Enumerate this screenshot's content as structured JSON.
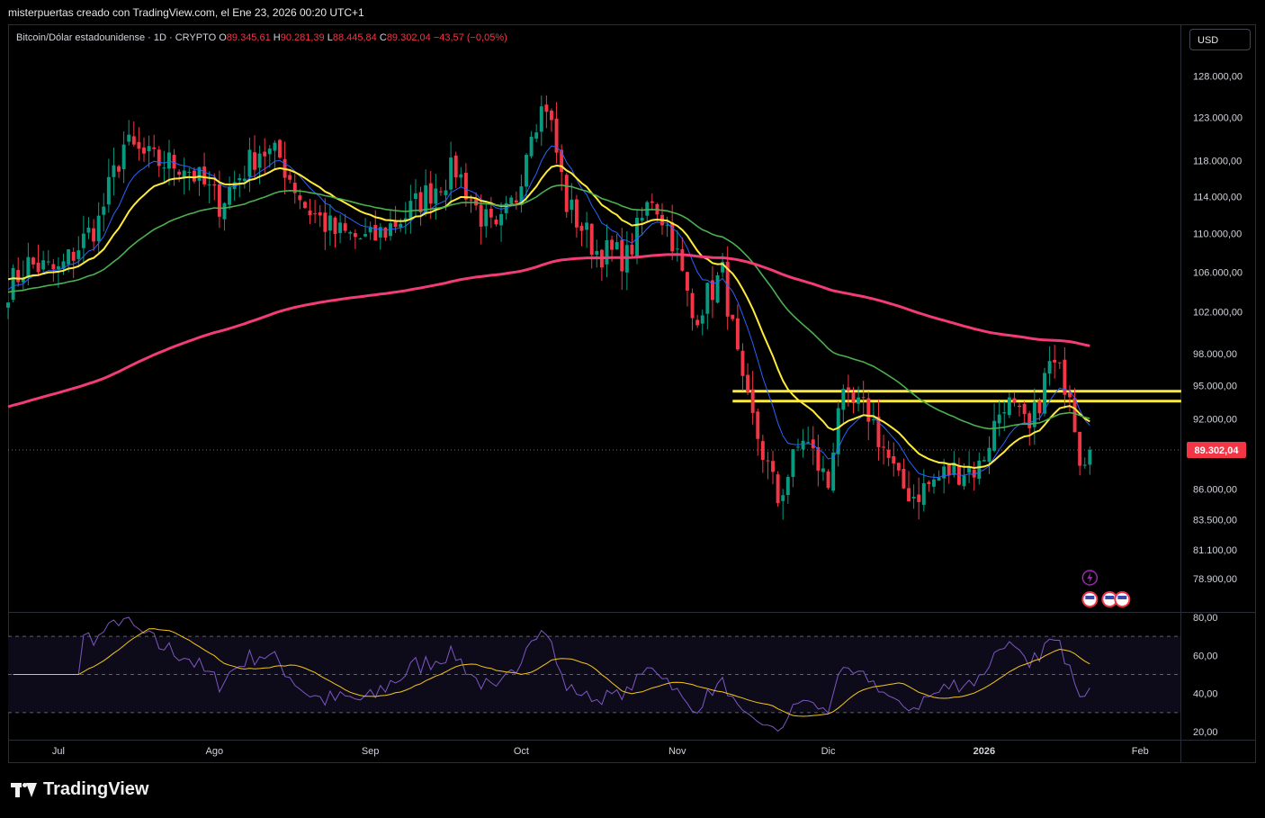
{
  "header": {
    "credit": "misterpuertas creado con TradingView.com, el Ene 23, 2026 00:20 UTC+1"
  },
  "legend": {
    "symbol": "Bitcoin/Dólar estadounidense · 1D · CRYPTO",
    "o_label": "O",
    "o_value": "89.345,61",
    "h_label": "H",
    "h_value": "90.281,39",
    "l_label": "L",
    "l_value": "88.445,84",
    "c_label": "C",
    "c_value": "89.302,04",
    "change": "−43,57 (−0,05%)"
  },
  "currency_button": "USD",
  "price_badge": "89.302,04",
  "footer": {
    "brand": "TradingView"
  },
  "colors": {
    "up": "#089981",
    "down": "#f23645",
    "ema_fast": "#2962ff",
    "ema_yellow": "#ffeb3b",
    "ema_green": "#4caf50",
    "ema_red": "#f23c75",
    "levels": "#ffeb3b",
    "rsi": "#7e57c2",
    "rsi_ma": "#f5c518"
  },
  "chart_data": [
    {
      "type": "candlestick",
      "title": "Bitcoin/Dólar estadounidense · 1D · CRYPTO",
      "x_tick_labels": [
        "Jul",
        "Ago",
        "Sep",
        "Oct",
        "Nov",
        "Dic",
        "2026",
        "Feb"
      ],
      "x_range": [
        "2025-06-21",
        "2026-02-09"
      ],
      "y_scale": "log",
      "y_tick_labels": [
        "128.000,00",
        "123.000,00",
        "118.000,00",
        "114.000,00",
        "110.000,00",
        "106.000,00",
        "102.000,00",
        "98.000,00",
        "95.000,00",
        "92.000,00",
        "86.000,00",
        "83.500,00",
        "81.100,00",
        "78.900,00"
      ],
      "y_ticks": [
        128000,
        123000,
        118000,
        114000,
        110000,
        106000,
        102000,
        98000,
        95000,
        92000,
        86000,
        83500,
        81100,
        78900
      ],
      "last_close": 89302.04,
      "horizontal_levels": [
        {
          "price": 94500,
          "x_start": "2025-11-12",
          "x_end": "2026-01-23"
        },
        {
          "price": 93600,
          "x_start": "2025-11-12",
          "x_end": "2026-01-23"
        }
      ],
      "close_anchors": [
        {
          "date": "2025-06-21",
          "close": 104500
        },
        {
          "date": "2025-06-25",
          "close": 106800
        },
        {
          "date": "2025-07-01",
          "close": 106000
        },
        {
          "date": "2025-07-09",
          "close": 111300
        },
        {
          "date": "2025-07-14",
          "close": 119800
        },
        {
          "date": "2025-07-20",
          "close": 117900
        },
        {
          "date": "2025-07-26",
          "close": 117600
        },
        {
          "date": "2025-08-02",
          "close": 113300
        },
        {
          "date": "2025-08-10",
          "close": 119300
        },
        {
          "date": "2025-08-14",
          "close": 118300
        },
        {
          "date": "2025-08-19",
          "close": 113000
        },
        {
          "date": "2025-08-25",
          "close": 110100
        },
        {
          "date": "2025-09-01",
          "close": 109200
        },
        {
          "date": "2025-09-08",
          "close": 112000
        },
        {
          "date": "2025-09-14",
          "close": 115200
        },
        {
          "date": "2025-09-18",
          "close": 117100
        },
        {
          "date": "2025-09-22",
          "close": 112700
        },
        {
          "date": "2025-09-26",
          "close": 109700
        },
        {
          "date": "2025-09-30",
          "close": 114100
        },
        {
          "date": "2025-10-03",
          "close": 122300
        },
        {
          "date": "2025-10-06",
          "close": 124700
        },
        {
          "date": "2025-10-10",
          "close": 113200
        },
        {
          "date": "2025-10-16",
          "close": 108200
        },
        {
          "date": "2025-10-22",
          "close": 107500
        },
        {
          "date": "2025-10-27",
          "close": 114100
        },
        {
          "date": "2025-10-31",
          "close": 109600
        },
        {
          "date": "2025-11-04",
          "close": 101400
        },
        {
          "date": "2025-11-10",
          "close": 105800
        },
        {
          "date": "2025-11-14",
          "close": 94500
        },
        {
          "date": "2025-11-21",
          "close": 85100
        },
        {
          "date": "2025-11-26",
          "close": 90500
        },
        {
          "date": "2025-12-01",
          "close": 86300
        },
        {
          "date": "2025-12-03",
          "close": 93500
        },
        {
          "date": "2025-12-09",
          "close": 92600
        },
        {
          "date": "2025-12-15",
          "close": 86400
        },
        {
          "date": "2025-12-18",
          "close": 85500
        },
        {
          "date": "2025-12-25",
          "close": 87500
        },
        {
          "date": "2025-12-31",
          "close": 87800
        },
        {
          "date": "2026-01-05",
          "close": 93800
        },
        {
          "date": "2026-01-10",
          "close": 90700
        },
        {
          "date": "2026-01-14",
          "close": 97000
        },
        {
          "date": "2026-01-18",
          "close": 95000
        },
        {
          "date": "2026-01-20",
          "close": 89000
        },
        {
          "date": "2026-01-22",
          "close": 89302
        }
      ],
      "series": [
        {
          "name": "",
          "kind": "ema",
          "period": 10,
          "color": "#2962ff"
        },
        {
          "name": "",
          "kind": "ema",
          "period": 20,
          "color": "#ffeb3b"
        },
        {
          "name": "",
          "kind": "ema",
          "period": 50,
          "color": "#4caf50"
        },
        {
          "name": "",
          "kind": "ema",
          "period": 200,
          "color": "#f23c75"
        }
      ]
    },
    {
      "type": "line",
      "title": "",
      "y_tick_labels": [
        "80,00",
        "60,00",
        "40,00",
        "20,00"
      ],
      "y_ticks": [
        80,
        60,
        40,
        20
      ],
      "ylim": [
        20,
        80
      ],
      "bands": [
        70,
        50,
        30
      ],
      "series": [
        {
          "name": "",
          "kind": "rsi",
          "period": 14,
          "color": "#7e57c2"
        },
        {
          "name": "",
          "kind": "sma_of_rsi",
          "period": 14,
          "color": "#f5c518"
        }
      ]
    }
  ]
}
